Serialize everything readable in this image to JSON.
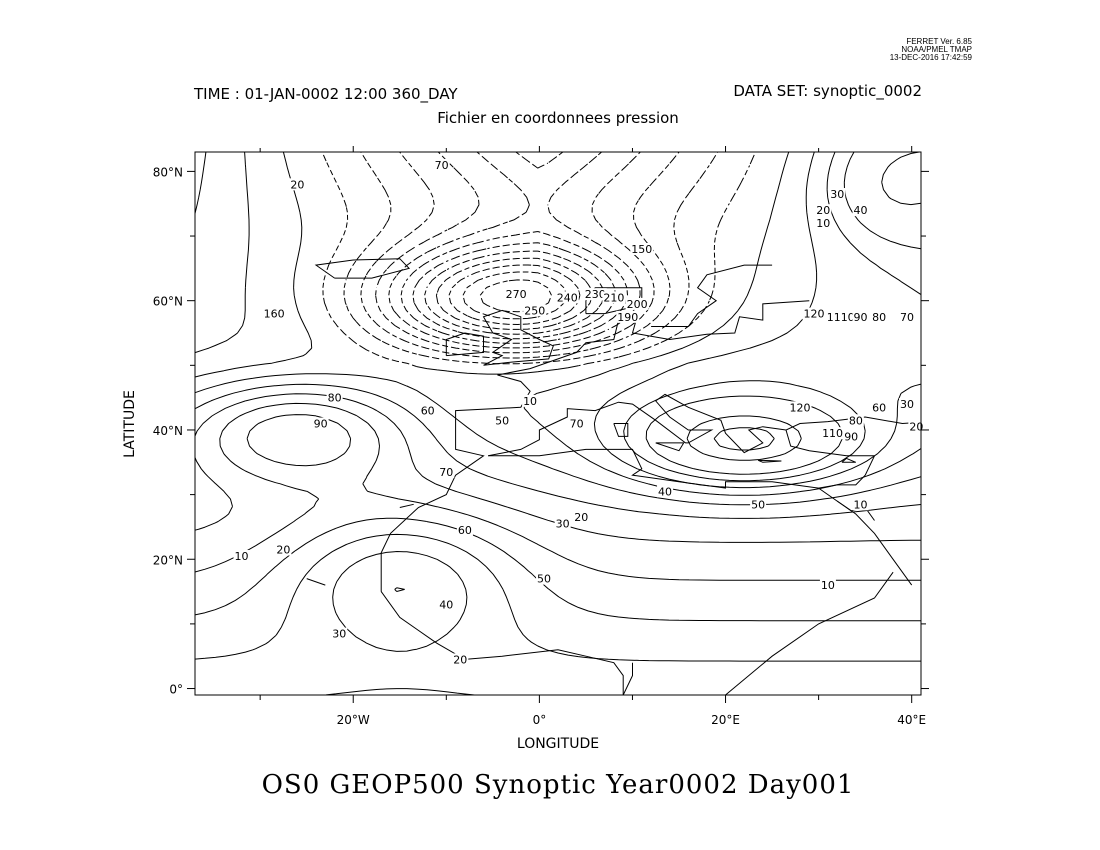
{
  "stamp": {
    "line1": "FERRET Ver. 6.85",
    "line2": "NOAA/PMEL TMAP",
    "line3": "13-DEC-2016 17:42:59"
  },
  "header": {
    "time": "TIME : 01-JAN-0002 12:00 360_DAY",
    "dataset": "DATA SET: synoptic_0002",
    "subtitle": "Fichier en coordonnees pression"
  },
  "footer": {
    "title": "OS0 GEOP500 Synoptic Year0002 Day001"
  },
  "map": {
    "xlabel": "LONGITUDE",
    "ylabel": "LATITUDE",
    "lon_range": [
      -37,
      41
    ],
    "lat_range": [
      -1,
      83
    ],
    "lon_ticks": [
      {
        "value": -20,
        "label": "20°W"
      },
      {
        "value": 0,
        "label": "0°"
      },
      {
        "value": 20,
        "label": "20°E"
      },
      {
        "value": 40,
        "label": "40°E"
      }
    ],
    "lat_ticks": [
      {
        "value": 0,
        "label": "0°"
      },
      {
        "value": 20,
        "label": "20°N"
      },
      {
        "value": 40,
        "label": "40°N"
      },
      {
        "value": 60,
        "label": "60°N"
      },
      {
        "value": 80,
        "label": "80°N"
      }
    ],
    "contour_labels": [
      {
        "text": "70",
        "lon": -10.5,
        "lat": 81
      },
      {
        "text": "20",
        "lon": -26,
        "lat": 78
      },
      {
        "text": "160",
        "lon": -28.5,
        "lat": 58
      },
      {
        "text": "270",
        "lon": -2.5,
        "lat": 61
      },
      {
        "text": "250",
        "lon": -0.5,
        "lat": 58.5
      },
      {
        "text": "240",
        "lon": 3,
        "lat": 60.5
      },
      {
        "text": "230",
        "lon": 6,
        "lat": 61
      },
      {
        "text": "210",
        "lon": 8,
        "lat": 60.5
      },
      {
        "text": "200",
        "lon": 10.5,
        "lat": 59.5
      },
      {
        "text": "190",
        "lon": 9.5,
        "lat": 57.5
      },
      {
        "text": "150",
        "lon": 11,
        "lat": 68
      },
      {
        "text": "120",
        "lon": 29.5,
        "lat": 58
      },
      {
        "text": "110",
        "lon": 32,
        "lat": 57.5
      },
      {
        "text": "100",
        "lon": 33.5,
        "lat": 57.5
      },
      {
        "text": "90",
        "lon": 34.5,
        "lat": 57.5
      },
      {
        "text": "80",
        "lon": 36.5,
        "lat": 57.5
      },
      {
        "text": "70",
        "lon": 39.5,
        "lat": 57.5
      },
      {
        "text": "30",
        "lon": 32,
        "lat": 76.5
      },
      {
        "text": "20",
        "lon": 30.5,
        "lat": 74
      },
      {
        "text": "10",
        "lon": 30.5,
        "lat": 72
      },
      {
        "text": "40",
        "lon": 34.5,
        "lat": 74
      },
      {
        "text": "80",
        "lon": -22,
        "lat": 45
      },
      {
        "text": "90",
        "lon": -23.5,
        "lat": 41
      },
      {
        "text": "60",
        "lon": -12,
        "lat": 43
      },
      {
        "text": "50",
        "lon": -4,
        "lat": 41.5
      },
      {
        "text": "10",
        "lon": -1,
        "lat": 44.5
      },
      {
        "text": "70",
        "lon": 4,
        "lat": 41
      },
      {
        "text": "70",
        "lon": -10,
        "lat": 33.5
      },
      {
        "text": "120",
        "lon": 28,
        "lat": 43.5
      },
      {
        "text": "110",
        "lon": 31.5,
        "lat": 39.5
      },
      {
        "text": "90",
        "lon": 33.5,
        "lat": 39
      },
      {
        "text": "80",
        "lon": 34,
        "lat": 41.5
      },
      {
        "text": "60",
        "lon": 36.5,
        "lat": 43.5
      },
      {
        "text": "40",
        "lon": 13.5,
        "lat": 30.5
      },
      {
        "text": "50",
        "lon": 23.5,
        "lat": 28.5
      },
      {
        "text": "30",
        "lon": 39.5,
        "lat": 44
      },
      {
        "text": "20",
        "lon": 40.5,
        "lat": 40.5
      },
      {
        "text": "10",
        "lon": 34.5,
        "lat": 28.5
      },
      {
        "text": "20",
        "lon": 4.5,
        "lat": 26.5
      },
      {
        "text": "30",
        "lon": 2.5,
        "lat": 25.5
      },
      {
        "text": "60",
        "lon": -8,
        "lat": 24.5
      },
      {
        "text": "50",
        "lon": 0.5,
        "lat": 17
      },
      {
        "text": "40",
        "lon": -10,
        "lat": 13
      },
      {
        "text": "30",
        "lon": -21.5,
        "lat": 8.5
      },
      {
        "text": "20",
        "lon": -8.5,
        "lat": 4.5
      },
      {
        "text": "20",
        "lon": -27.5,
        "lat": 21.5
      },
      {
        "text": "10",
        "lon": -32,
        "lat": 20.5
      },
      {
        "text": "10",
        "lon": 31,
        "lat": 16
      }
    ]
  }
}
